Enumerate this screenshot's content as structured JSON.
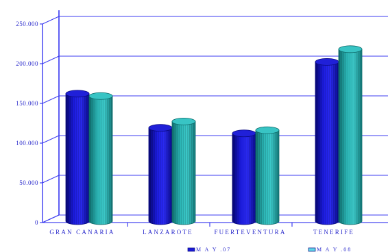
{
  "chart_data": {
    "type": "bar",
    "categories": [
      "GRAN CANARIA",
      "LANZAROTE",
      "FUERTEVENTURA",
      "TENERIFE"
    ],
    "series": [
      {
        "name": "M A Y .07",
        "values": [
          158000,
          115000,
          108000,
          198000
        ],
        "color": "#1a1ad6"
      },
      {
        "name": "M A Y .08",
        "values": [
          155000,
          123000,
          112000,
          214000
        ],
        "color": "#2ab8b8"
      }
    ],
    "yticks": [
      "0",
      "50.000",
      "100.000",
      "150.000",
      "200.000",
      "250.000"
    ],
    "ylim": [
      0,
      250000
    ],
    "grid": true,
    "legend_position": "bottom"
  }
}
